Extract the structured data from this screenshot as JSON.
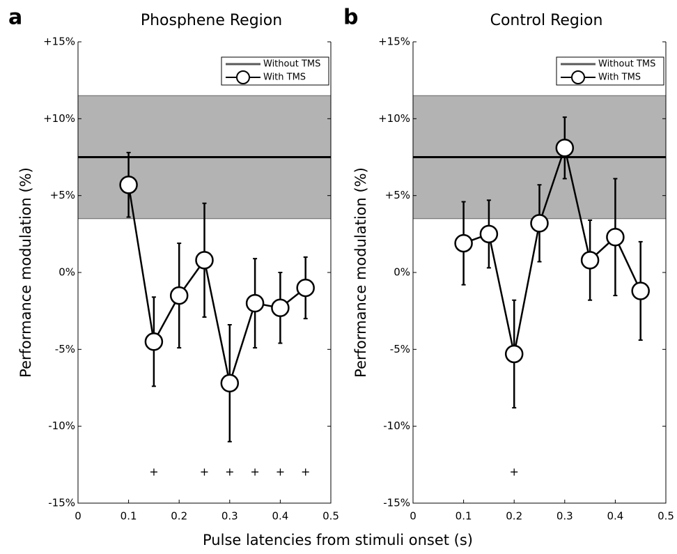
{
  "xlabel": "Pulse latencies from stimuli onset (s)",
  "chart_data": [
    {
      "type": "errorline",
      "panel_label": "a",
      "title": "Phosphene Region",
      "ylabel": "Performance modulation (%)",
      "xlim": [
        0,
        0.5
      ],
      "xticks": [
        0,
        0.1,
        0.2,
        0.3,
        0.4,
        0.5
      ],
      "ylim": [
        -15,
        15
      ],
      "yticks": [
        {
          "value": -15,
          "label": "-15%"
        },
        {
          "value": -10,
          "label": "-10%"
        },
        {
          "value": -5,
          "label": "-5%"
        },
        {
          "value": 0,
          "label": "0%"
        },
        {
          "value": 5,
          "label": "+5%"
        },
        {
          "value": 10,
          "label": "+10%"
        },
        {
          "value": 15,
          "label": "+15%"
        }
      ],
      "reference": {
        "name": "Without TMS",
        "value": 7.5,
        "band_low": 3.5,
        "band_high": 11.5,
        "color": "#000000",
        "band_color": "#b3b3b3"
      },
      "series": [
        {
          "name": "With TMS",
          "color": "#000000",
          "x": [
            0.1,
            0.15,
            0.2,
            0.25,
            0.3,
            0.35,
            0.4,
            0.45
          ],
          "values": [
            5.7,
            -4.5,
            -1.5,
            0.8,
            -7.2,
            -2.0,
            -2.3,
            -1.0
          ],
          "errors": [
            2.1,
            2.9,
            3.4,
            3.7,
            3.8,
            2.9,
            2.3,
            2.0
          ]
        }
      ],
      "significance": {
        "symbol": "+",
        "y": -13,
        "x": [
          0.15,
          0.25,
          0.3,
          0.35,
          0.4,
          0.45
        ]
      },
      "legend": "upper right"
    },
    {
      "type": "errorline",
      "panel_label": "b",
      "title": "Control Region",
      "ylabel": "Performance modulation (%)",
      "xlim": [
        0,
        0.5
      ],
      "xticks": [
        0,
        0.1,
        0.2,
        0.3,
        0.4,
        0.5
      ],
      "ylim": [
        -15,
        15
      ],
      "yticks": [
        {
          "value": -15,
          "label": "-15%"
        },
        {
          "value": -10,
          "label": "-10%"
        },
        {
          "value": -5,
          "label": "-5%"
        },
        {
          "value": 0,
          "label": "0%"
        },
        {
          "value": 5,
          "label": "+5%"
        },
        {
          "value": 10,
          "label": "+10%"
        },
        {
          "value": 15,
          "label": "+15%"
        }
      ],
      "reference": {
        "name": "Without TMS",
        "value": 7.5,
        "band_low": 3.5,
        "band_high": 11.5,
        "color": "#000000",
        "band_color": "#b3b3b3"
      },
      "series": [
        {
          "name": "With TMS",
          "color": "#000000",
          "x": [
            0.1,
            0.15,
            0.2,
            0.25,
            0.3,
            0.35,
            0.4,
            0.45
          ],
          "values": [
            1.9,
            2.5,
            -5.3,
            3.2,
            8.1,
            0.8,
            2.3,
            -1.2
          ],
          "errors": [
            2.7,
            2.2,
            3.5,
            2.5,
            2.0,
            2.6,
            3.8,
            3.2
          ]
        }
      ],
      "significance": {
        "symbol": "+",
        "y": -13,
        "x": [
          0.2
        ]
      },
      "legend": "upper right"
    }
  ]
}
